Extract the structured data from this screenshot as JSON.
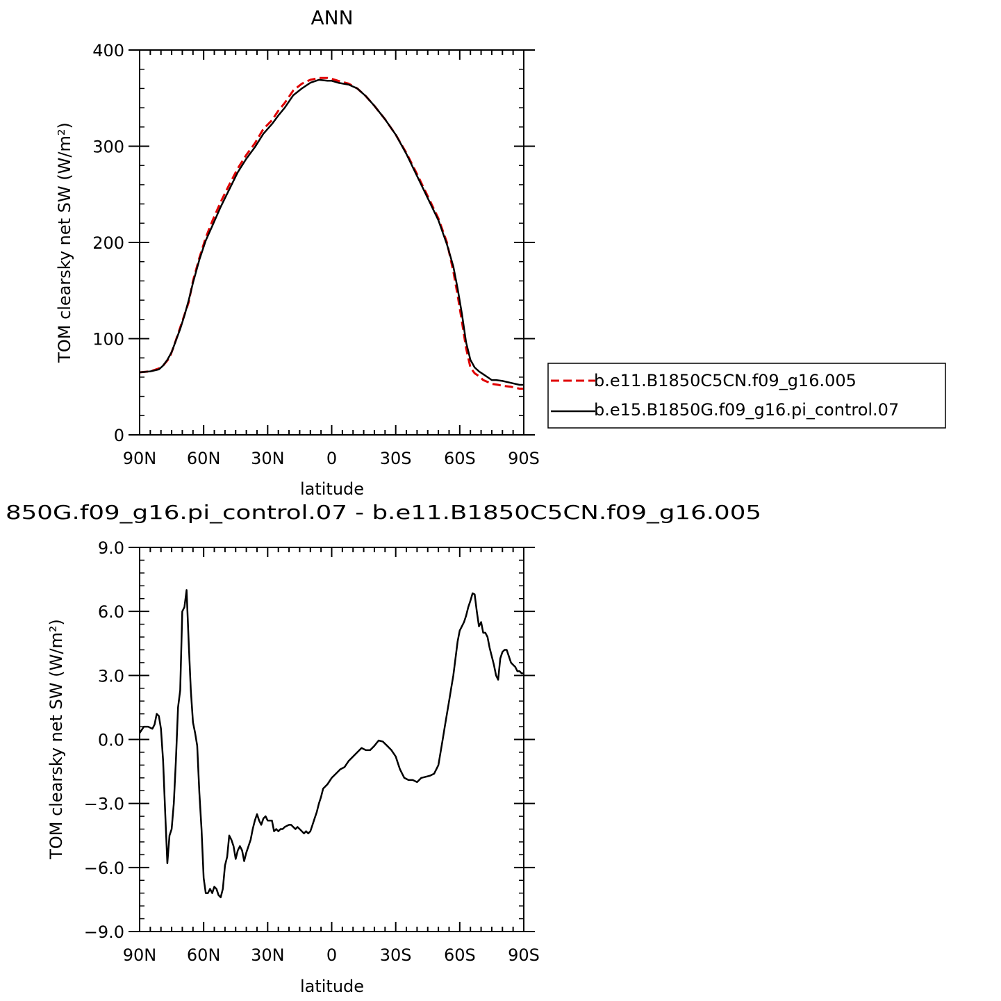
{
  "chart_data": [
    {
      "type": "line",
      "title": "ANN",
      "xlabel": "latitude",
      "ylabel": "TOM clearsky net SW (W/m²)",
      "xlim": [
        -90,
        90
      ],
      "ylim": [
        0,
        400
      ],
      "xticks": [
        {
          "value": -90,
          "label": "90N"
        },
        {
          "value": -60,
          "label": "60N"
        },
        {
          "value": -30,
          "label": "30N"
        },
        {
          "value": 0,
          "label": "0"
        },
        {
          "value": 30,
          "label": "30S"
        },
        {
          "value": 60,
          "label": "60S"
        },
        {
          "value": 90,
          "label": "90S"
        }
      ],
      "yticks": [
        {
          "value": 0,
          "label": "0"
        },
        {
          "value": 100,
          "label": "100"
        },
        {
          "value": 200,
          "label": "200"
        },
        {
          "value": 300,
          "label": "300"
        },
        {
          "value": 400,
          "label": "400"
        }
      ],
      "legend_position": "right",
      "series": [
        {
          "name": "b.e11.B1850C5CN.f09_g16.005",
          "color": "#e00000",
          "dash": "dashed",
          "x": [
            -90,
            -85,
            -81,
            -79,
            -76,
            -74,
            -72,
            -70,
            -67,
            -65,
            -62,
            -59,
            -56,
            -52,
            -48,
            -44,
            -40,
            -36,
            -32,
            -28,
            -25,
            -22,
            -18,
            -14,
            -10,
            -6,
            -2,
            0,
            3,
            8,
            12,
            16,
            20,
            25,
            30,
            35,
            40,
            45,
            50,
            54,
            57,
            59,
            61,
            63,
            65,
            67,
            69,
            71,
            73,
            75,
            78,
            80,
            84,
            88,
            90
          ],
          "y": [
            65,
            66,
            69,
            72,
            80,
            92,
            105,
            118,
            138,
            160,
            184,
            205,
            222,
            242,
            260,
            277,
            291,
            303,
            318,
            327,
            337,
            345,
            358,
            365,
            369,
            371,
            371,
            370,
            368,
            365,
            360,
            352,
            342,
            328,
            312,
            293,
            271,
            248,
            225,
            200,
            170,
            145,
            118,
            90,
            70,
            64,
            61,
            57,
            55,
            53,
            52,
            51,
            50,
            48,
            48
          ]
        },
        {
          "name": "b.e15.B1850G.f09_g16.pi_control.07",
          "color": "#000000",
          "dash": "solid",
          "x": [
            -90,
            -85,
            -81,
            -79,
            -77,
            -75,
            -73,
            -71,
            -69,
            -67,
            -65,
            -62,
            -59,
            -56,
            -52,
            -48,
            -44,
            -40,
            -36,
            -32,
            -28,
            -25,
            -22,
            -18,
            -14,
            -10,
            -6,
            -2,
            0,
            3,
            8,
            12,
            16,
            20,
            25,
            30,
            35,
            40,
            45,
            50,
            54,
            57,
            59,
            61,
            63,
            65,
            67,
            69,
            71,
            73,
            75,
            77,
            80,
            84,
            88,
            90
          ],
          "y": [
            65,
            66,
            68,
            72,
            78,
            86,
            98,
            110,
            124,
            140,
            158,
            182,
            202,
            217,
            237,
            255,
            273,
            287,
            299,
            313,
            323,
            332,
            340,
            353,
            360,
            366,
            369,
            368,
            368,
            366,
            364,
            360,
            352,
            342,
            328,
            312,
            292,
            269,
            246,
            223,
            198,
            175,
            152,
            126,
            96,
            78,
            70,
            66,
            63,
            60,
            57,
            57,
            56,
            54,
            52,
            52
          ]
        }
      ]
    },
    {
      "type": "line",
      "title": "850G.f09_g16.pi_control.07 - b.e11.B1850C5CN.f09_g16.005",
      "xlabel": "latitude",
      "ylabel": "TOM clearsky net SW (W/m²)",
      "xlim": [
        -90,
        90
      ],
      "ylim": [
        -9,
        9
      ],
      "xticks": [
        {
          "value": -90,
          "label": "90N"
        },
        {
          "value": -60,
          "label": "60N"
        },
        {
          "value": -30,
          "label": "30N"
        },
        {
          "value": 0,
          "label": "0"
        },
        {
          "value": 30,
          "label": "30S"
        },
        {
          "value": 60,
          "label": "60S"
        },
        {
          "value": 90,
          "label": "90S"
        }
      ],
      "yticks": [
        {
          "value": -9,
          "label": "−9.0"
        },
        {
          "value": -6,
          "label": "−6.0"
        },
        {
          "value": -3,
          "label": "−3.0"
        },
        {
          "value": 0,
          "label": "0.0"
        },
        {
          "value": 3,
          "label": "3.0"
        },
        {
          "value": 6,
          "label": "6.0"
        },
        {
          "value": 9,
          "label": "9.0"
        }
      ],
      "series": [
        {
          "name": "",
          "color": "#000000",
          "dash": "solid",
          "x": [
            -90,
            -88,
            -86,
            -84,
            -83,
            -82,
            -81,
            -80,
            -79,
            -78,
            -77,
            -76,
            -75,
            -74,
            -73,
            -72,
            -71,
            -70,
            -69,
            -68,
            -67,
            -66,
            -65,
            -64,
            -63,
            -62,
            -61,
            -60,
            -59,
            -58,
            -57,
            -56,
            -55,
            -54,
            -53,
            -52,
            -51,
            -50,
            -49,
            -48,
            -47,
            -46,
            -45,
            -44,
            -43,
            -42,
            -41,
            -40,
            -39,
            -38,
            -37,
            -36,
            -35,
            -34,
            -33,
            -32,
            -31,
            -30,
            -29,
            -28,
            -27,
            -26,
            -25,
            -24,
            -23,
            -22,
            -21,
            -20,
            -19,
            -18,
            -17,
            -16,
            -15,
            -14,
            -13,
            -12,
            -11,
            -10,
            -9,
            -8,
            -7,
            -6,
            -5,
            -4,
            -2,
            0,
            2,
            4,
            6,
            8,
            10,
            12,
            14,
            16,
            18,
            20,
            22,
            24,
            26,
            28,
            30,
            31,
            32,
            34,
            36,
            38,
            40,
            42,
            44,
            46,
            48,
            50,
            52,
            53,
            54,
            55,
            56,
            57,
            58,
            59,
            60,
            61,
            62,
            63,
            64,
            65,
            66,
            67,
            68,
            69,
            70,
            71,
            72,
            73,
            74,
            75,
            76,
            77,
            78,
            79,
            80,
            81,
            82,
            83,
            84,
            85,
            86,
            87,
            88,
            89,
            90
          ],
          "y": [
            0.3,
            0.6,
            0.6,
            0.5,
            0.7,
            1.2,
            1.1,
            0.5,
            -1.0,
            -3.5,
            -5.8,
            -4.5,
            -4.2,
            -3.0,
            -1.0,
            1.5,
            2.3,
            6.0,
            6.2,
            7.0,
            4.5,
            2.3,
            0.8,
            0.3,
            -0.3,
            -2.5,
            -4.2,
            -6.5,
            -7.2,
            -7.2,
            -7.0,
            -7.2,
            -6.9,
            -7.0,
            -7.3,
            -7.4,
            -7.0,
            -5.9,
            -5.5,
            -4.5,
            -4.7,
            -5.0,
            -5.6,
            -5.2,
            -5.0,
            -5.2,
            -5.7,
            -5.3,
            -5.0,
            -4.7,
            -4.2,
            -3.8,
            -3.5,
            -3.8,
            -4.0,
            -3.7,
            -3.6,
            -3.8,
            -3.8,
            -3.8,
            -4.3,
            -4.2,
            -4.3,
            -4.2,
            -4.2,
            -4.1,
            -4.05,
            -4.0,
            -4.0,
            -4.1,
            -4.2,
            -4.1,
            -4.2,
            -4.3,
            -4.4,
            -4.3,
            -4.4,
            -4.3,
            -4.0,
            -3.7,
            -3.4,
            -3.0,
            -2.7,
            -2.3,
            -2.1,
            -1.8,
            -1.6,
            -1.4,
            -1.3,
            -1.0,
            -0.8,
            -0.6,
            -0.4,
            -0.5,
            -0.5,
            -0.3,
            -0.05,
            -0.1,
            -0.3,
            -0.5,
            -0.8,
            -1.1,
            -1.4,
            -1.8,
            -1.9,
            -1.9,
            -2.0,
            -1.8,
            -1.75,
            -1.7,
            -1.6,
            -1.2,
            0.0,
            0.6,
            1.2,
            1.8,
            2.4,
            3.0,
            3.8,
            4.6,
            5.1,
            5.3,
            5.5,
            5.8,
            6.2,
            6.5,
            6.85,
            6.8,
            6.0,
            5.3,
            5.5,
            5.0,
            5.0,
            4.8,
            4.3,
            3.9,
            3.5,
            3.0,
            2.8,
            3.8,
            4.1,
            4.2,
            4.2,
            3.9,
            3.6,
            3.5,
            3.4,
            3.2,
            3.2,
            3.1,
            3.1
          ]
        }
      ]
    }
  ]
}
